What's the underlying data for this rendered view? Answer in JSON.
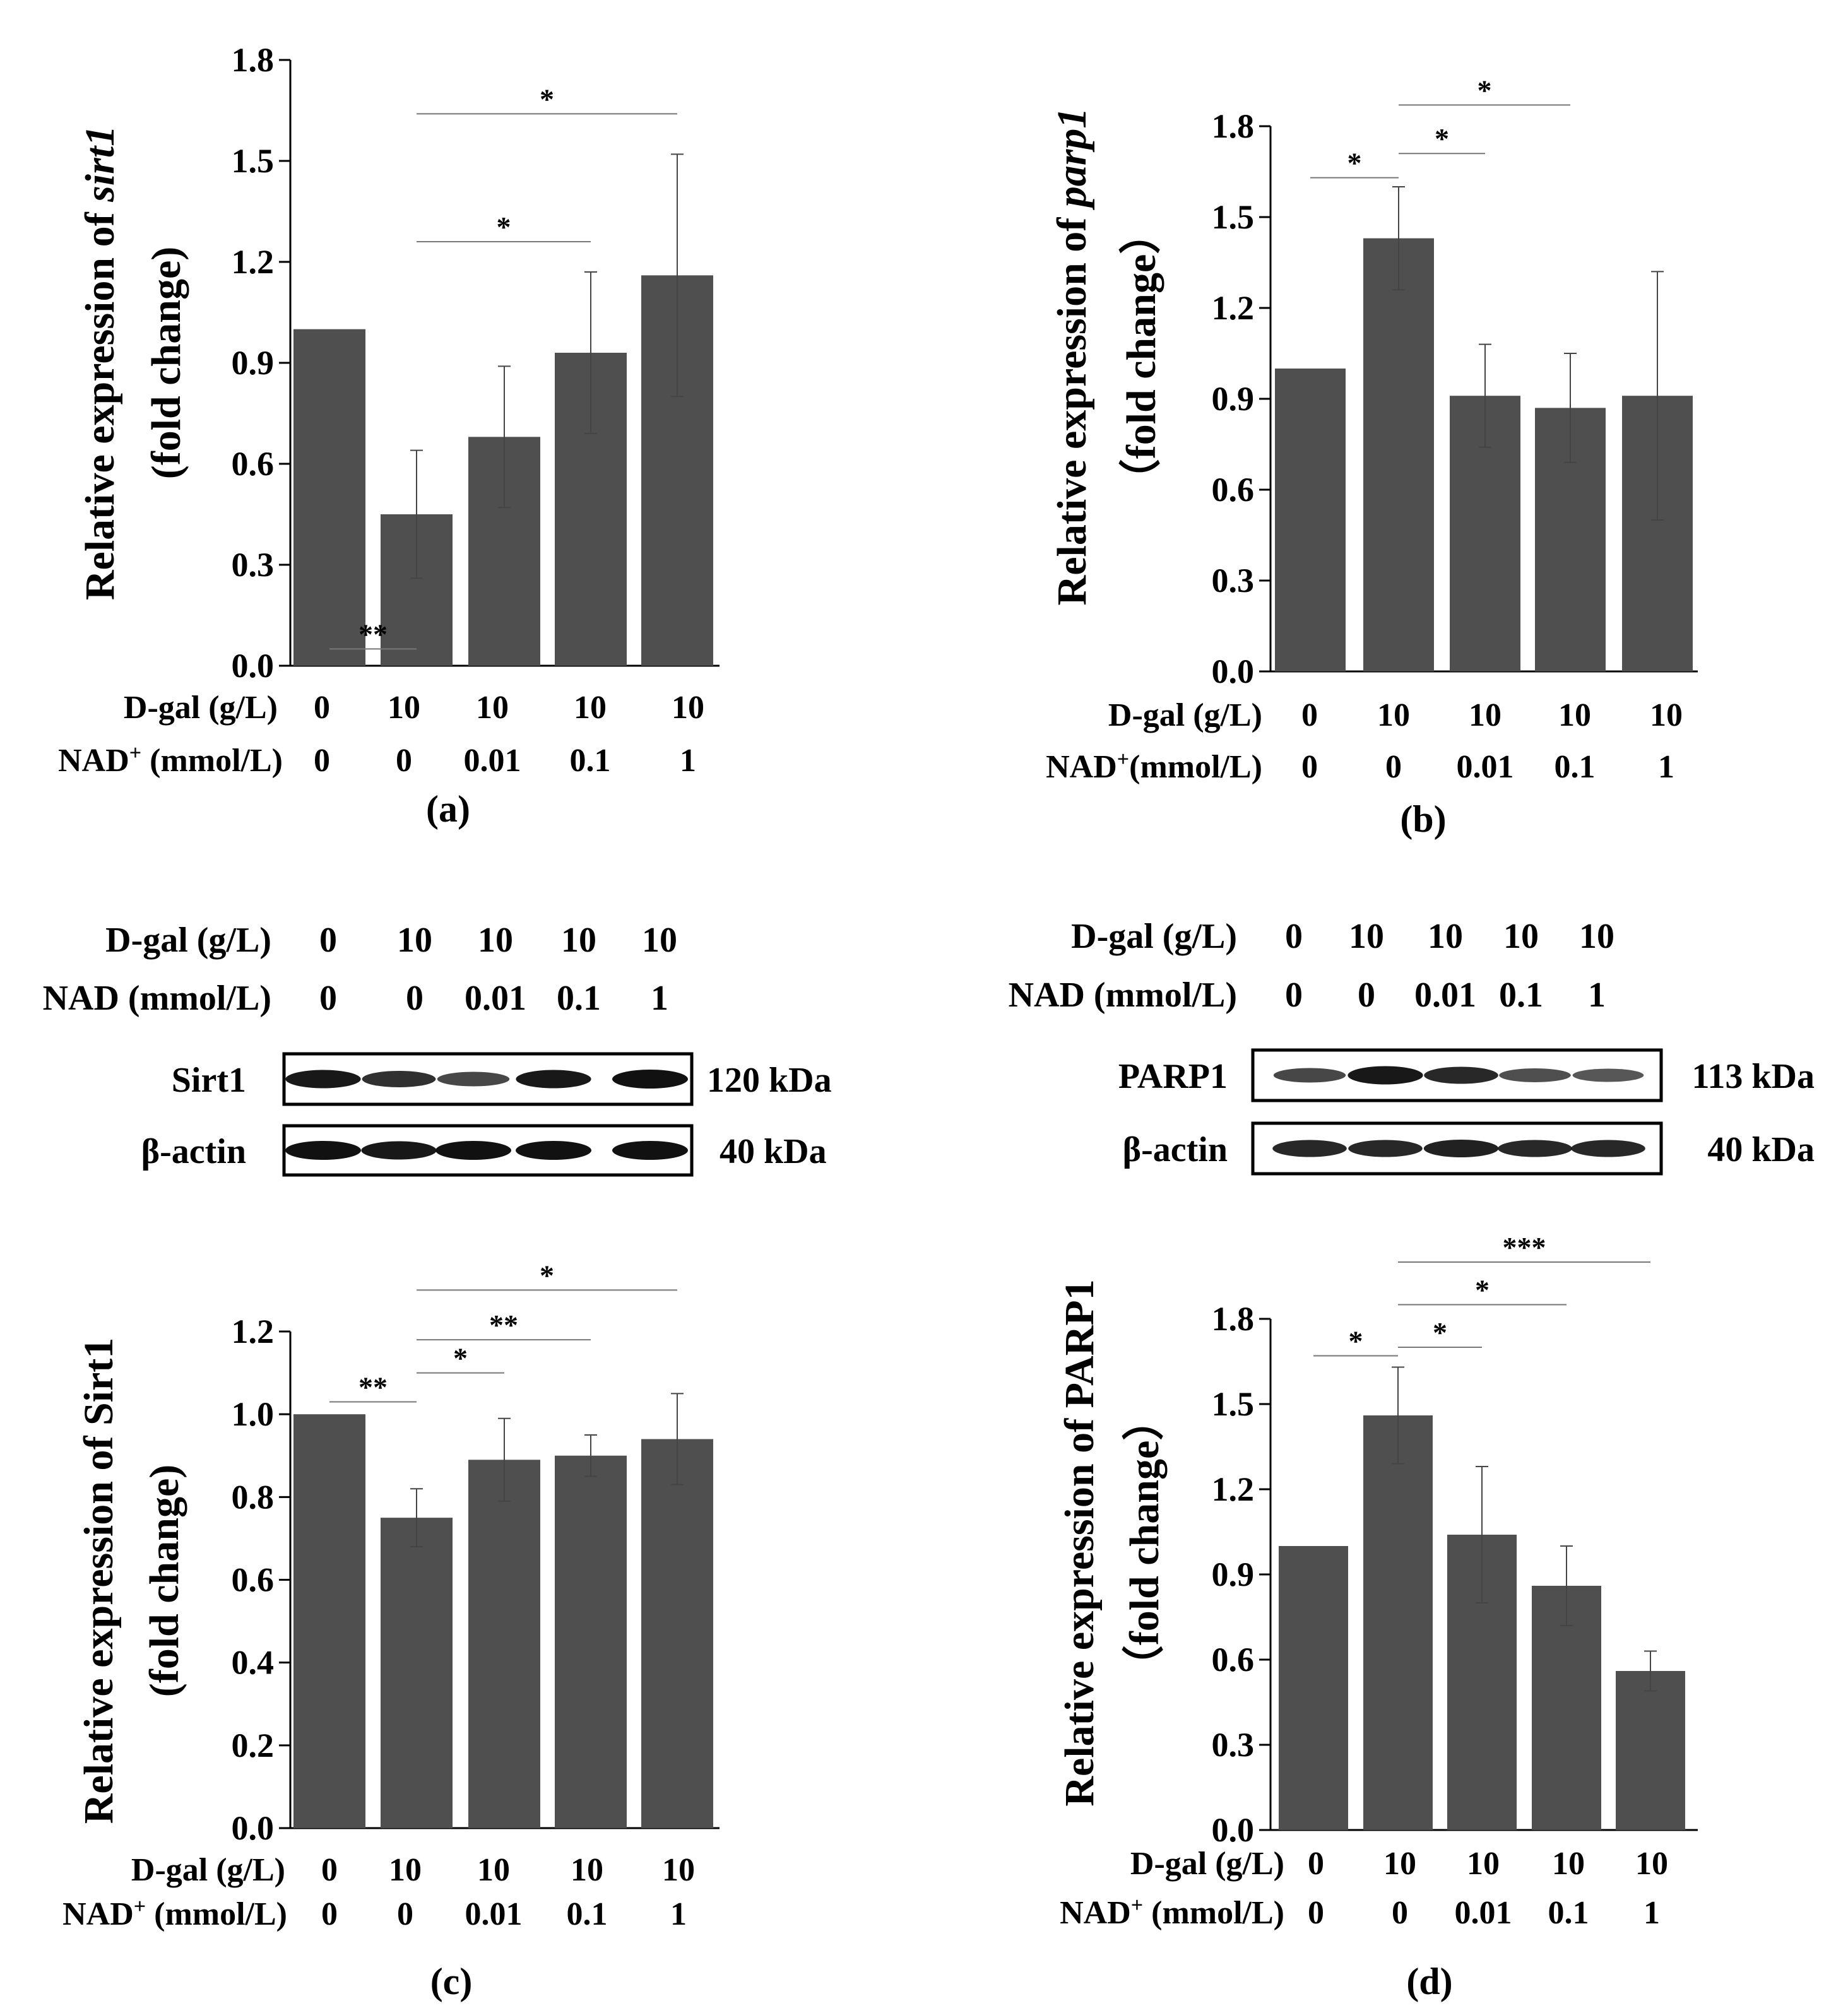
{
  "colors": {
    "bar": "#4f4f4f",
    "axis": "#000000",
    "bracket": "#777777",
    "band": "#111111",
    "blot_bg": "#ffffff"
  },
  "chart_data": [
    {
      "id": "a",
      "type": "bar",
      "panel_label": "(a)",
      "ylabel_main": "Relative expression of ",
      "ylabel_gene": "sirt1",
      "ylabel_unit": "(fold change)",
      "ylim": [
        0,
        1.8
      ],
      "yticks": [
        "0.0",
        "0.3",
        "0.6",
        "0.9",
        "1.2",
        "1.5",
        "1.8"
      ],
      "row1_label": "D-gal (g/L)",
      "row2_label": "NAD",
      "row2_sup": "+",
      "row2_unit": " (mmol/L)",
      "dgal": [
        "0",
        "10",
        "10",
        "10",
        "10"
      ],
      "nad": [
        "0",
        "0",
        "0.01",
        "0.1",
        "1"
      ],
      "values": [
        1.0,
        0.45,
        0.68,
        0.93,
        1.16
      ],
      "errors": [
        0,
        0.19,
        0.21,
        0.24,
        0.36
      ],
      "significance": [
        {
          "from": 0,
          "to": 1,
          "level": 0.05,
          "label": "**"
        },
        {
          "from": 1,
          "to": 3,
          "level": 1.26,
          "label": "*"
        },
        {
          "from": 1,
          "to": 4,
          "level": 1.64,
          "label": "*"
        }
      ]
    },
    {
      "id": "b",
      "type": "bar",
      "panel_label": "(b)",
      "ylabel_main": "Relative expression of ",
      "ylabel_gene": "parp1",
      "ylabel_unit": "（fold change）",
      "ylim": [
        0,
        1.8
      ],
      "yticks": [
        "0.0",
        "0.3",
        "0.6",
        "0.9",
        "1.2",
        "1.5",
        "1.8"
      ],
      "row1_label": "D-gal (g/L)",
      "row2_label": "NAD",
      "row2_sup": "+",
      "row2_unit": "(mmol/L)",
      "dgal": [
        "0",
        "10",
        "10",
        "10",
        "10"
      ],
      "nad": [
        "0",
        "0",
        "0.01",
        "0.1",
        "1"
      ],
      "values": [
        1.0,
        1.43,
        0.91,
        0.87,
        0.91
      ],
      "errors": [
        0,
        0.17,
        0.17,
        0.18,
        0.41
      ],
      "significance": [
        {
          "from": 0,
          "to": 1,
          "level": 1.63,
          "label": "*"
        },
        {
          "from": 1,
          "to": 2,
          "level": 1.71,
          "label": "*"
        },
        {
          "from": 1,
          "to": 3,
          "level": 1.87,
          "label": "*"
        }
      ]
    },
    {
      "id": "c",
      "type": "bar",
      "panel_label": "(c)",
      "ylabel_main": "Relative expression of Sirt1",
      "ylabel_gene": "",
      "ylabel_unit": "(fold change)",
      "ylim": [
        0,
        1.2
      ],
      "yticks": [
        "0.0",
        "0.2",
        "0.4",
        "0.6",
        "0.8",
        "1.0",
        "1.2"
      ],
      "row1_label": "D-gal (g/L)",
      "row2_label": "NAD",
      "row2_sup": "+",
      "row2_unit": " (mmol/L)",
      "dgal": [
        "0",
        "10",
        "10",
        "10",
        "10"
      ],
      "nad": [
        "0",
        "0",
        "0.01",
        "0.1",
        "1"
      ],
      "values": [
        1.0,
        0.75,
        0.89,
        0.9,
        0.94
      ],
      "errors": [
        0,
        0.07,
        0.1,
        0.05,
        0.11
      ],
      "significance": [
        {
          "from": 0,
          "to": 1,
          "level": 1.03,
          "label": "**"
        },
        {
          "from": 1,
          "to": 2,
          "level": 1.1,
          "label": "*"
        },
        {
          "from": 1,
          "to": 3,
          "level": 1.18,
          "label": "**"
        },
        {
          "from": 1,
          "to": 4,
          "level": 1.3,
          "label": "*"
        }
      ]
    },
    {
      "id": "d",
      "type": "bar",
      "panel_label": "(d)",
      "ylabel_main": "Relative expression of PARP1",
      "ylabel_gene": "",
      "ylabel_unit": "（fold change）",
      "ylim": [
        0,
        1.8
      ],
      "yticks": [
        "0.0",
        "0.3",
        "0.6",
        "0.9",
        "1.2",
        "1.5",
        "1.8"
      ],
      "row1_label": "D-gal (g/L)",
      "row2_label": "NAD",
      "row2_sup": "+",
      "row2_unit": " (mmol/L)",
      "dgal": [
        "0",
        "10",
        "10",
        "10",
        "10"
      ],
      "nad": [
        "0",
        "0",
        "0.01",
        "0.1",
        "1"
      ],
      "values": [
        1.0,
        1.46,
        1.04,
        0.86,
        0.56
      ],
      "errors": [
        0,
        0.17,
        0.24,
        0.14,
        0.07
      ],
      "significance": [
        {
          "from": 0,
          "to": 1,
          "level": 1.67,
          "label": "*"
        },
        {
          "from": 1,
          "to": 2,
          "level": 1.7,
          "label": "*"
        },
        {
          "from": 1,
          "to": 3,
          "level": 1.85,
          "label": "*"
        },
        {
          "from": 1,
          "to": 4,
          "level": 2.0,
          "label": "***"
        }
      ]
    }
  ],
  "blots": [
    {
      "id": "blot-left",
      "row1_label": "D-gal (g/L)",
      "row2_label": "NAD (mmol/L)",
      "dgal": [
        "0",
        "10",
        "10",
        "10",
        "10"
      ],
      "nad": [
        "0",
        "0",
        "0.01",
        "0.1",
        "1"
      ],
      "bands": [
        {
          "name": "Sirt1",
          "kda": "120 kDa",
          "intensity": [
            0.95,
            0.8,
            0.65,
            0.95,
            1.0
          ]
        },
        {
          "name": "β-actin",
          "kda": "40 kDa",
          "intensity": [
            1.0,
            0.95,
            1.0,
            1.0,
            1.0
          ]
        }
      ]
    },
    {
      "id": "blot-right",
      "row1_label": "D-gal (g/L)",
      "row2_label": "NAD (mmol/L)",
      "dgal": [
        "0",
        "10",
        "10",
        "10",
        "10"
      ],
      "nad": [
        "0",
        "0",
        "0.01",
        "0.1",
        "1"
      ],
      "bands": [
        {
          "name": "PARP1",
          "kda": "113 kDa",
          "intensity": [
            0.65,
            0.95,
            0.85,
            0.6,
            0.55
          ]
        },
        {
          "name": "β-actin",
          "kda": "40 kDa",
          "intensity": [
            0.85,
            0.85,
            0.9,
            0.85,
            0.85
          ]
        }
      ]
    }
  ]
}
